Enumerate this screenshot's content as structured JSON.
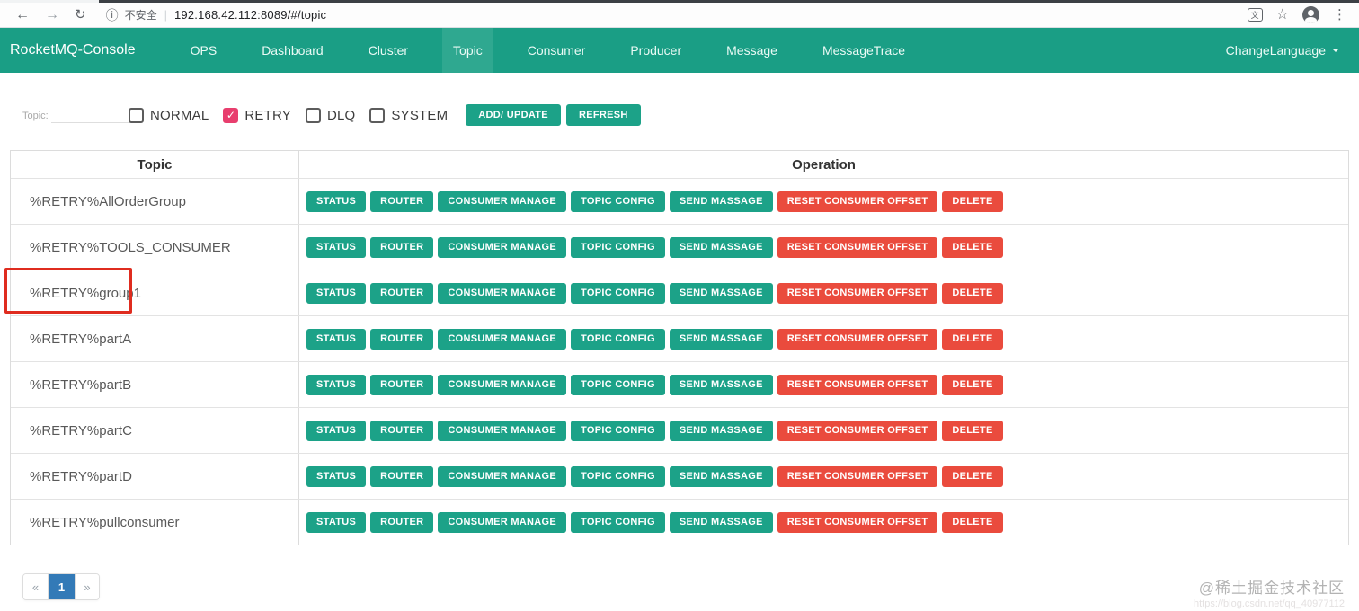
{
  "browser": {
    "security_text": "不安全",
    "url": "192.168.42.112:8089/#/topic"
  },
  "navbar": {
    "brand": "RocketMQ-Console",
    "items": [
      {
        "label": "OPS",
        "active": false
      },
      {
        "label": "Dashboard",
        "active": false
      },
      {
        "label": "Cluster",
        "active": false
      },
      {
        "label": "Topic",
        "active": true
      },
      {
        "label": "Consumer",
        "active": false
      },
      {
        "label": "Producer",
        "active": false
      },
      {
        "label": "Message",
        "active": false
      },
      {
        "label": "MessageTrace",
        "active": false
      }
    ],
    "language_menu": "ChangeLanguage"
  },
  "filter": {
    "topic_label": "Topic:",
    "topic_input_value": "",
    "checkboxes": [
      {
        "label": "NORMAL",
        "checked": false
      },
      {
        "label": "RETRY",
        "checked": true
      },
      {
        "label": "DLQ",
        "checked": false
      },
      {
        "label": "SYSTEM",
        "checked": false
      }
    ],
    "add_update_button": "ADD/ UPDATE",
    "refresh_button": "REFRESH"
  },
  "table": {
    "headers": [
      "Topic",
      "Operation"
    ],
    "actions": [
      {
        "label": "STATUS",
        "color": "teal"
      },
      {
        "label": "ROUTER",
        "color": "teal"
      },
      {
        "label": "CONSUMER MANAGE",
        "color": "teal"
      },
      {
        "label": "TOPIC CONFIG",
        "color": "teal"
      },
      {
        "label": "SEND MASSAGE",
        "color": "teal"
      },
      {
        "label": "RESET CONSUMER OFFSET",
        "color": "red"
      },
      {
        "label": "DELETE",
        "color": "red"
      }
    ],
    "rows": [
      {
        "topic": "%RETRY%AllOrderGroup",
        "highlighted": false
      },
      {
        "topic": "%RETRY%TOOLS_CONSUMER",
        "highlighted": false
      },
      {
        "topic": "%RETRY%group1",
        "highlighted": true
      },
      {
        "topic": "%RETRY%partA",
        "highlighted": false
      },
      {
        "topic": "%RETRY%partB",
        "highlighted": false
      },
      {
        "topic": "%RETRY%partC",
        "highlighted": false
      },
      {
        "topic": "%RETRY%partD",
        "highlighted": false
      },
      {
        "topic": "%RETRY%pullconsumer",
        "highlighted": false
      }
    ]
  },
  "pagination": {
    "prev": "«",
    "active_page": "1",
    "next": "»"
  },
  "watermark": {
    "line1": "@稀土掘金技术社区",
    "line2": "https://blog.csdn.net/qq_40977112"
  },
  "colors": {
    "navbar_teal": "#1A9E85",
    "active_tab_teal": "#2FA890",
    "button_teal": "#1CA288",
    "button_red": "#EA4B3D",
    "retry_checkbox_pink": "#E83E6E",
    "pagination_active_blue": "#337AB7"
  }
}
